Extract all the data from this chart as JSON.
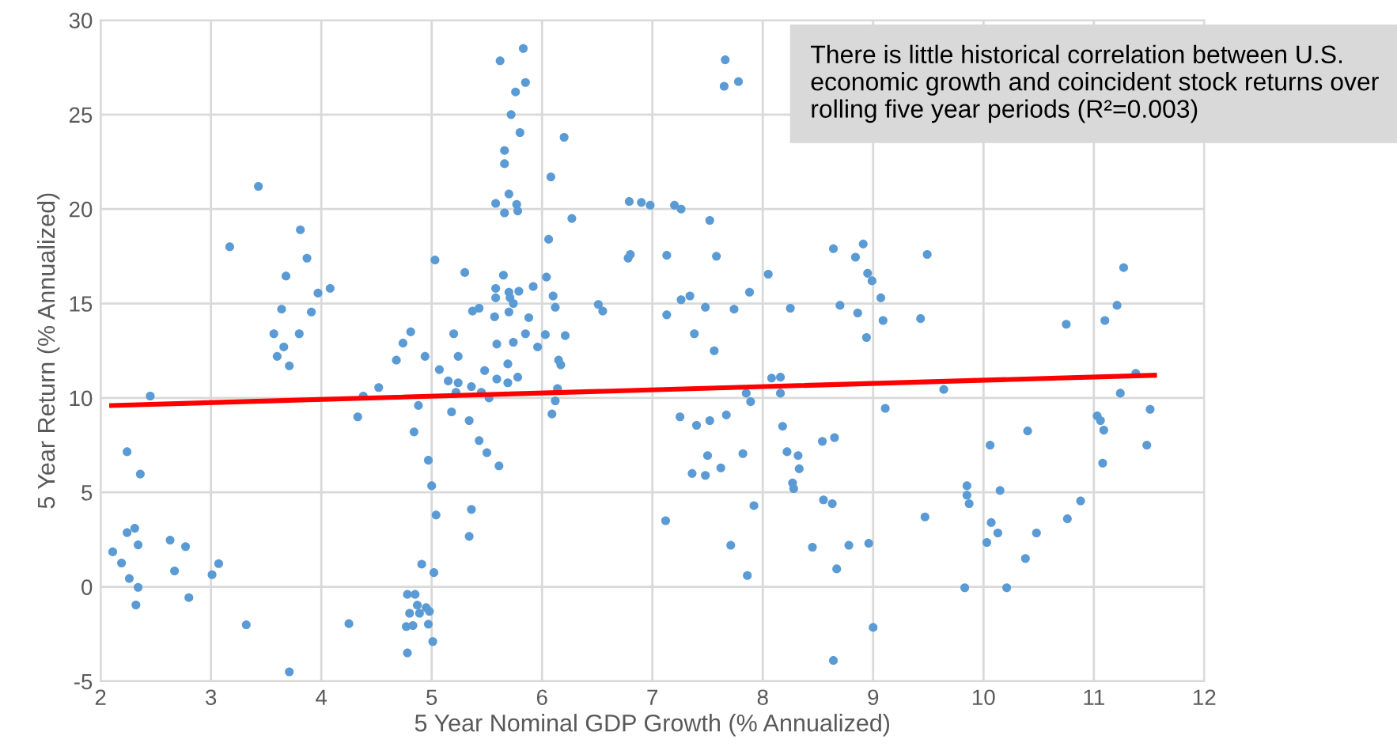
{
  "chart_data": {
    "type": "scatter",
    "xlabel": "5 Year Nominal GDP Growth (% Annualized)",
    "ylabel": "5 Year Return (% Annualized)",
    "annotations": [
      "There is little historical correlation between U.S. economic growth and coincident stock returns over rolling five year periods (R²=0.003)"
    ],
    "xlim": [
      2,
      12
    ],
    "xticks": [
      2,
      3,
      4,
      5,
      6,
      7,
      8,
      9,
      10,
      11,
      12
    ],
    "ylim": [
      -5,
      30
    ],
    "yticks": [
      -5,
      0,
      5,
      10,
      15,
      20,
      25,
      30
    ],
    "grid": true,
    "legend": false,
    "series": [
      {
        "marker": "circle",
        "color": "#5b9bd5",
        "x": [
          2.11,
          2.19,
          2.24,
          2.31,
          2.34,
          2.26,
          2.34,
          2.32,
          2.24,
          2.36,
          2.45,
          2.63,
          2.67,
          2.77,
          2.8,
          3.01,
          3.07,
          3.32,
          3.71,
          3.17,
          3.43,
          3.81,
          3.87,
          3.68,
          3.64,
          3.97,
          4.08,
          3.91,
          3.57,
          3.8,
          3.66,
          3.6,
          3.71,
          4.25,
          4.33,
          4.38,
          4.52,
          4.68,
          4.74,
          4.81,
          4.94,
          4.88,
          4.84,
          4.97,
          5.0,
          5.04,
          4.91,
          5.02,
          4.78,
          4.85,
          4.87,
          4.8,
          4.89,
          4.95,
          4.98,
          4.77,
          4.83,
          4.97,
          4.78,
          5.01,
          5.03,
          5.3,
          5.2,
          5.24,
          5.07,
          5.15,
          5.24,
          5.22,
          5.18,
          5.34,
          5.43,
          5.5,
          5.61,
          5.36,
          5.34,
          5.37,
          5.43,
          5.36,
          5.45,
          5.52,
          5.48,
          5.59,
          5.69,
          5.78,
          5.69,
          5.59,
          5.74,
          5.57,
          5.7,
          5.74,
          5.58,
          5.71,
          5.7,
          5.58,
          5.65,
          5.79,
          5.88,
          5.85,
          5.92,
          5.96,
          6.03,
          6.04,
          6.1,
          6.12,
          6.06,
          6.27,
          6.21,
          6.15,
          6.17,
          6.14,
          6.12,
          6.09,
          6.08,
          6.2,
          5.58,
          5.66,
          5.7,
          5.77,
          5.78,
          5.66,
          5.66,
          5.8,
          5.72,
          5.76,
          5.85,
          5.83,
          5.62,
          6.51,
          6.55,
          6.78,
          6.8,
          6.79,
          6.9,
          6.98,
          7.2,
          7.13,
          7.13,
          7.12,
          7.25,
          7.26,
          7.26,
          7.52,
          7.58,
          7.34,
          7.48,
          7.38,
          7.56,
          7.74,
          7.88,
          7.4,
          7.52,
          7.67,
          7.5,
          7.62,
          7.36,
          7.48,
          7.82,
          7.85,
          7.89,
          7.92,
          7.71,
          7.86,
          7.66,
          7.65,
          7.78,
          8.05,
          8.25,
          8.08,
          8.16,
          8.16,
          8.18,
          8.22,
          8.32,
          8.33,
          8.27,
          8.28,
          8.54,
          8.65,
          8.55,
          8.63,
          8.45,
          8.78,
          8.96,
          8.67,
          9.0,
          8.64,
          8.64,
          8.7,
          8.86,
          8.84,
          8.91,
          8.95,
          8.99,
          9.07,
          9.09,
          8.94,
          9.11,
          9.43,
          9.49,
          9.64,
          9.47,
          9.85,
          9.85,
          9.87,
          9.83,
          10.21,
          10.03,
          10.13,
          10.07,
          10.15,
          10.06,
          10.38,
          10.4,
          10.48,
          10.76,
          10.88,
          10.75,
          11.1,
          11.21,
          11.27,
          11.38,
          11.24,
          11.51,
          11.03,
          11.06,
          11.09,
          11.48,
          11.08
        ],
        "values": [
          1.85,
          1.26,
          2.87,
          3.1,
          2.22,
          0.44,
          -0.03,
          -0.96,
          7.15,
          5.97,
          10.1,
          2.47,
          0.84,
          2.13,
          -0.57,
          0.64,
          1.23,
          -2.01,
          -4.5,
          18.0,
          21.2,
          18.9,
          17.4,
          16.45,
          14.7,
          15.55,
          15.8,
          14.55,
          13.4,
          13.4,
          12.7,
          12.2,
          11.7,
          -1.95,
          9.0,
          10.1,
          10.55,
          12.0,
          12.9,
          13.5,
          12.2,
          9.6,
          8.2,
          6.7,
          5.35,
          3.8,
          1.2,
          0.75,
          -0.4,
          -0.4,
          -0.97,
          -1.4,
          -1.4,
          -1.1,
          -1.3,
          -2.1,
          -2.05,
          -1.98,
          -3.5,
          -2.9,
          17.3,
          16.64,
          13.4,
          12.2,
          11.5,
          10.9,
          10.8,
          10.3,
          9.26,
          8.8,
          7.74,
          7.1,
          6.4,
          4.1,
          2.67,
          14.6,
          14.75,
          10.6,
          10.3,
          10.0,
          11.45,
          11.0,
          10.8,
          11.1,
          11.8,
          12.85,
          12.95,
          14.3,
          14.55,
          15.0,
          15.3,
          15.3,
          15.6,
          15.8,
          16.5,
          15.65,
          14.25,
          13.4,
          15.9,
          12.7,
          13.35,
          16.4,
          15.4,
          14.8,
          18.4,
          19.5,
          13.3,
          12.0,
          11.75,
          10.5,
          9.85,
          9.15,
          21.7,
          23.8,
          20.3,
          19.8,
          20.8,
          20.25,
          19.9,
          23.1,
          22.4,
          24.05,
          25.0,
          26.2,
          26.7,
          28.5,
          27.85,
          14.95,
          14.6,
          17.4,
          17.6,
          20.4,
          20.35,
          20.2,
          20.2,
          17.55,
          14.4,
          3.5,
          9.0,
          15.2,
          20.0,
          19.4,
          17.5,
          15.4,
          14.8,
          13.4,
          12.5,
          14.7,
          15.6,
          8.55,
          8.8,
          9.1,
          6.95,
          6.3,
          6.0,
          5.9,
          7.05,
          10.25,
          9.8,
          4.3,
          2.2,
          0.6,
          27.9,
          26.5,
          26.75,
          16.55,
          14.75,
          11.05,
          11.1,
          10.25,
          8.5,
          7.15,
          6.95,
          6.25,
          5.5,
          5.2,
          7.7,
          7.9,
          4.6,
          4.4,
          2.1,
          2.2,
          2.3,
          0.95,
          -2.15,
          -3.9,
          17.9,
          14.9,
          14.5,
          17.45,
          18.15,
          16.6,
          16.2,
          15.3,
          14.1,
          13.2,
          9.45,
          14.2,
          17.6,
          10.45,
          3.7,
          5.35,
          4.85,
          4.4,
          -0.05,
          -0.05,
          2.35,
          2.85,
          3.4,
          5.1,
          7.5,
          1.5,
          8.25,
          2.85,
          3.6,
          4.55,
          13.9,
          14.1,
          14.9,
          16.9,
          11.3,
          10.25,
          9.4,
          9.05,
          8.8,
          8.3,
          7.5,
          6.55
        ]
      },
      {
        "type": "line",
        "color": "#ff0000",
        "x": [
          2.1,
          11.55
        ],
        "values": [
          9.6,
          11.2
        ]
      }
    ]
  }
}
